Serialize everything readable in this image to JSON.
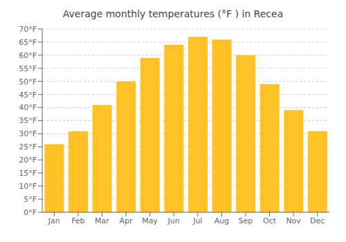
{
  "chart_data": {
    "type": "bar",
    "title": "Average monthly temperatures (°F ) in Recea",
    "categories": [
      "Jan",
      "Feb",
      "Mar",
      "Apr",
      "May",
      "Jun",
      "Jul",
      "Aug",
      "Sep",
      "Oct",
      "Nov",
      "Dec"
    ],
    "values": [
      26,
      31,
      41,
      50,
      59,
      64,
      67,
      66,
      60,
      49,
      39,
      31
    ],
    "color": "#FFC125",
    "ylim": [
      0,
      70
    ],
    "yticks": [
      {
        "value": 0,
        "label": "0°F"
      },
      {
        "value": 5,
        "label": "5°F"
      },
      {
        "value": 10,
        "label": "10°F"
      },
      {
        "value": 15,
        "label": "15°F"
      },
      {
        "value": 20,
        "label": "20°F"
      },
      {
        "value": 25,
        "label": "25°F"
      },
      {
        "value": 30,
        "label": "30°F"
      },
      {
        "value": 35,
        "label": "35°F"
      },
      {
        "value": 40,
        "label": "40°F"
      },
      {
        "value": 45,
        "label": "45°F"
      },
      {
        "value": 50,
        "label": "50°F"
      },
      {
        "value": 55,
        "label": "55°F"
      },
      {
        "value": 60,
        "label": "60°F"
      },
      {
        "value": 65,
        "label": "65°F"
      },
      {
        "value": 70,
        "label": "70°F"
      }
    ],
    "grid": true
  }
}
